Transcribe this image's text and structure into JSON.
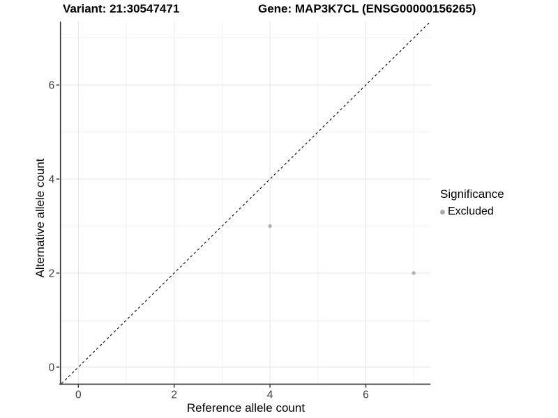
{
  "titles": {
    "left": "Variant: 21:30547471",
    "right": "Gene: MAP3K7CL (ENSG00000156265)"
  },
  "chart_data": {
    "type": "scatter",
    "xlabel": "Reference allele count",
    "ylabel": "Alternative allele count",
    "xlim": [
      -0.35,
      7.35
    ],
    "ylim": [
      -0.35,
      7.35
    ],
    "x_ticks": [
      0,
      2,
      4,
      6
    ],
    "y_ticks": [
      0,
      2,
      4,
      6
    ],
    "x_minor_ticks": [
      1,
      3,
      5,
      7
    ],
    "y_minor_ticks": [
      1,
      3,
      5,
      7
    ],
    "grid": "on",
    "legend_position": "right",
    "series": [
      {
        "name": "Excluded",
        "points": [
          {
            "x": 4,
            "y": 3
          },
          {
            "x": 7,
            "y": 2
          }
        ],
        "color": "#b1b1b1",
        "marker": "circle",
        "marker_radius": 2.7
      }
    ],
    "reference_line": {
      "description": "identity line y = x",
      "from": [
        -0.35,
        -0.35
      ],
      "to": [
        7.35,
        7.35
      ],
      "style": "dashed",
      "color": "#000000"
    }
  },
  "legend": {
    "title": "Significance",
    "items": [
      {
        "label": "Excluded",
        "color": "#a9a9a9",
        "marker": "circle"
      }
    ]
  },
  "colors": {
    "background": "#ffffff",
    "grid_major": "#e4e4e4",
    "grid_minor": "#f1f1f1",
    "axis_line": "#333333",
    "tick_mark": "#333333",
    "tick_label": "#3c3c3c"
  }
}
